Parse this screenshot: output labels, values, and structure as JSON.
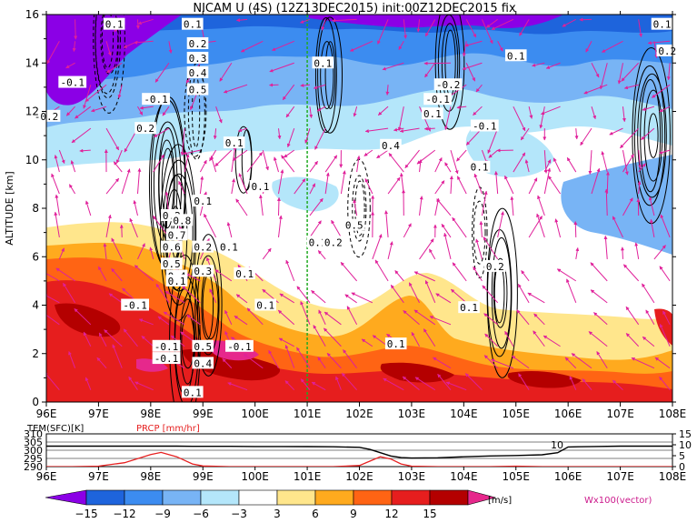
{
  "chart_data": [
    {
      "type": "heatmap",
      "title": "NICAM U (4S) (12Z13DEC2015) init:00Z12DEC2015 fix",
      "ylabel": "ALTITUDE [km]",
      "x_ticks": [
        "96E",
        "97E",
        "98E",
        "99E",
        "100E",
        "101E",
        "102E",
        "103E",
        "104E",
        "105E",
        "106E",
        "107E",
        "108E"
      ],
      "y_ticks": [
        "0",
        "2",
        "4",
        "6",
        "8",
        "10",
        "12",
        "14",
        "16"
      ],
      "xlim": [
        96,
        108
      ],
      "ylim": [
        0,
        16
      ],
      "grid": false,
      "colorbar": {
        "levels": [
          "-15",
          "-12",
          "-9",
          "-6",
          "-3",
          "3",
          "6",
          "9",
          "12",
          "15"
        ],
        "unit": "[m/s]",
        "colors": [
          "#8b00e6",
          "#1e64dc",
          "#3c8cf0",
          "#78b4f5",
          "#b4e6fa",
          "#ffffff",
          "#ffe68c",
          "#ffaa1e",
          "#ff6414",
          "#e61e1e",
          "#b40000",
          "#e6288c"
        ]
      },
      "vector_label": "Wx100(vector)",
      "marker_line_x": 101,
      "contour_labels": [
        {
          "text": "0.1",
          "x": 97.3,
          "y": 15.6
        },
        {
          "text": "-0.1",
          "x": 96.5,
          "y": 13.2
        },
        {
          "text": "-0.2",
          "x": 96.0,
          "y": 11.8
        },
        {
          "text": "0.1",
          "x": 98.8,
          "y": 15.6
        },
        {
          "text": "0.2",
          "x": 98.9,
          "y": 14.8
        },
        {
          "text": "0.3",
          "x": 98.9,
          "y": 14.2
        },
        {
          "text": "0.4",
          "x": 98.9,
          "y": 13.6
        },
        {
          "text": "0.5",
          "x": 98.9,
          "y": 12.9
        },
        {
          "text": "-0.1",
          "x": 98.1,
          "y": 12.5
        },
        {
          "text": "0.2",
          "x": 97.9,
          "y": 11.3
        },
        {
          "text": "0.1",
          "x": 99.6,
          "y": 10.7
        },
        {
          "text": "0.1",
          "x": 99.0,
          "y": 8.3
        },
        {
          "text": "0.1",
          "x": 100.1,
          "y": 8.9
        },
        {
          "text": "0.1",
          "x": 101.3,
          "y": 14.0
        },
        {
          "text": "0.2",
          "x": 98.4,
          "y": 7.7
        },
        {
          "text": "0.8",
          "x": 98.6,
          "y": 7.5
        },
        {
          "text": "0.7",
          "x": 98.5,
          "y": 6.9
        },
        {
          "text": "0.6",
          "x": 98.4,
          "y": 6.4
        },
        {
          "text": "0.5",
          "x": 98.4,
          "y": 5.7
        },
        {
          "text": "0.4",
          "x": 98.5,
          "y": 5.2
        },
        {
          "text": "0.2",
          "x": 99.0,
          "y": 6.4
        },
        {
          "text": "0.1",
          "x": 99.5,
          "y": 6.4
        },
        {
          "text": "0.3",
          "x": 99.0,
          "y": 5.4
        },
        {
          "text": "0.1",
          "x": 98.5,
          "y": 5.0
        },
        {
          "text": "0.1",
          "x": 99.8,
          "y": 5.3
        },
        {
          "text": "0.1",
          "x": 100.2,
          "y": 4.0
        },
        {
          "text": "-0.1",
          "x": 97.7,
          "y": 4.0
        },
        {
          "text": "0.5",
          "x": 99.0,
          "y": 2.3
        },
        {
          "text": "0.4",
          "x": 99.0,
          "y": 1.6
        },
        {
          "text": "-0.1",
          "x": 99.7,
          "y": 2.3
        },
        {
          "text": "-0.1",
          "x": 98.3,
          "y": 2.3
        },
        {
          "text": "-0.1",
          "x": 98.3,
          "y": 1.8
        },
        {
          "text": "0.1",
          "x": 98.8,
          "y": 0.4
        },
        {
          "text": "0.1",
          "x": 101.2,
          "y": 6.6
        },
        {
          "text": "0.2",
          "x": 101.5,
          "y": 6.6
        },
        {
          "text": "0.5",
          "x": 101.9,
          "y": 7.3
        },
        {
          "text": "0.4",
          "x": 102.6,
          "y": 10.6
        },
        {
          "text": "0.1",
          "x": 102.7,
          "y": 2.4
        },
        {
          "text": "-0.2",
          "x": 103.7,
          "y": 13.1
        },
        {
          "text": "-0.1",
          "x": 103.5,
          "y": 12.5
        },
        {
          "text": "0.1",
          "x": 103.4,
          "y": 11.9
        },
        {
          "text": "-0.1",
          "x": 104.4,
          "y": 11.4
        },
        {
          "text": "0.1",
          "x": 104.3,
          "y": 9.7
        },
        {
          "text": "0.2",
          "x": 104.6,
          "y": 5.6
        },
        {
          "text": "0.1",
          "x": 104.1,
          "y": 3.9
        },
        {
          "text": "0.1",
          "x": 105.0,
          "y": 14.3
        },
        {
          "text": "0.1",
          "x": 107.8,
          "y": 15.6
        },
        {
          "text": "0.2",
          "x": 107.9,
          "y": 14.5
        }
      ]
    },
    {
      "type": "line",
      "x": [
        96,
        96.5,
        97,
        97.5,
        98,
        98.2,
        98.5,
        98.8,
        99,
        99.5,
        100,
        100.5,
        101,
        101.5,
        102,
        102.2,
        102.4,
        102.6,
        102.8,
        103,
        103.5,
        104,
        104.5,
        105,
        105.5,
        105.8,
        106,
        106.5,
        107,
        107.5,
        108
      ],
      "x_ticks": [
        "96E",
        "97E",
        "98E",
        "99E",
        "100E",
        "101E",
        "102E",
        "103E",
        "104E",
        "105E",
        "106E",
        "107E",
        "108E"
      ],
      "xlim": [
        96,
        108
      ],
      "series": [
        {
          "name": "TEM(SFC)[K]",
          "color": "#000000",
          "ylim": [
            290,
            310
          ],
          "y_ticks": [
            "290",
            "295",
            "300",
            "305",
            "310"
          ],
          "values": [
            302.5,
            302.5,
            302.5,
            302.5,
            302.5,
            302.5,
            302.5,
            302.4,
            302.4,
            302.4,
            302.3,
            302.3,
            302.2,
            302.1,
            301.8,
            300.5,
            298.5,
            296.5,
            295.5,
            295.2,
            295.4,
            296.0,
            296.5,
            296.8,
            297.2,
            298.5,
            302.0,
            302.3,
            302.5,
            302.5,
            302.5
          ]
        },
        {
          "name": "PRCP [mm/hr]",
          "color": "#e62020",
          "ylim": [
            0,
            15
          ],
          "y_ticks": [
            "0",
            "5",
            "10",
            "15"
          ],
          "values": [
            0,
            0,
            0.2,
            1.8,
            5.5,
            6.5,
            4.5,
            1.2,
            0.3,
            0,
            0,
            0,
            0,
            0,
            0.5,
            2.5,
            4.5,
            3.5,
            1.2,
            0.2,
            0,
            0,
            0,
            0.2,
            0,
            0,
            0,
            0,
            0,
            0,
            0
          ]
        }
      ],
      "annotations": [
        "10"
      ]
    }
  ]
}
